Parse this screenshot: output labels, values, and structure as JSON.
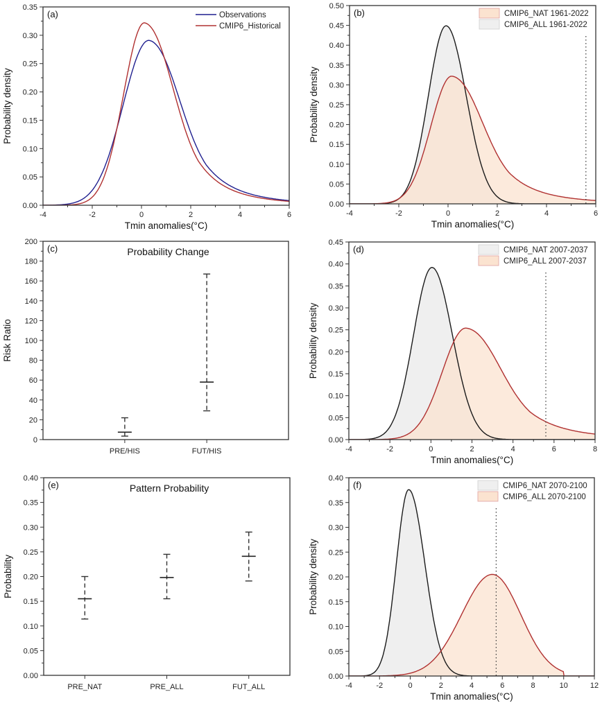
{
  "chart_data": [
    {
      "panel": "a",
      "type": "line",
      "panel_label": "(a)",
      "title": "",
      "xlabel": "Tmin anomalies(°C)",
      "ylabel": "Probability density",
      "xlim": [
        -4,
        6
      ],
      "ylim": [
        0,
        0.35
      ],
      "xticks": [
        -4,
        -2,
        0,
        2,
        4,
        6
      ],
      "yticks": [
        0.0,
        0.05,
        0.1,
        0.15,
        0.2,
        0.25,
        0.3,
        0.35
      ],
      "legend_position": "top-right",
      "series": [
        {
          "name": "Observations",
          "color": "#1f1f8f",
          "fill": null,
          "dist": {
            "mode": 0.3,
            "peak": 0.291,
            "sigma_left": 1.05,
            "sigma_right": 1.55,
            "tail": "heavy-right"
          }
        },
        {
          "name": "CMIP6_Historical",
          "color": "#b03030",
          "fill": null,
          "dist": {
            "mode": 0.12,
            "peak": 0.322,
            "sigma_left": 0.85,
            "sigma_right": 1.45,
            "tail": "heavy-right"
          }
        }
      ]
    },
    {
      "panel": "b",
      "type": "area",
      "panel_label": "(b)",
      "title": "",
      "xlabel": "Tmin anomalies(°C)",
      "ylabel": "Probability density",
      "xlim": [
        -4,
        6
      ],
      "ylim": [
        0,
        0.5
      ],
      "xticks": [
        -4,
        -2,
        0,
        2,
        4,
        6
      ],
      "yticks": [
        0.0,
        0.05,
        0.1,
        0.15,
        0.2,
        0.25,
        0.3,
        0.35,
        0.4,
        0.45,
        0.5
      ],
      "legend_position": "top-right",
      "threshold_line": 5.6,
      "series": [
        {
          "name": "CMIP6_NAT 1961-2022",
          "color": "#b03030",
          "fill": "#fbe3d0",
          "dist": {
            "mode": 0.15,
            "peak": 0.322,
            "sigma_left": 0.85,
            "sigma_right": 1.55,
            "tail": "heavy-right"
          }
        },
        {
          "name": "CMIP6_ALL  1961-2022",
          "color": "#1a1a1a",
          "fill": "#efefef",
          "dist": {
            "mode": -0.08,
            "peak": 0.449,
            "sigma_left": 0.72,
            "sigma_right": 0.82,
            "tail": "normal"
          }
        }
      ]
    },
    {
      "panel": "c",
      "type": "errorbar",
      "panel_label": "(c)",
      "title": "Probability Change",
      "xlabel": "",
      "ylabel": "Risk Ratio",
      "ylim": [
        0,
        200
      ],
      "yticks": [
        0,
        20,
        40,
        60,
        80,
        100,
        120,
        140,
        160,
        180,
        200
      ],
      "categories": [
        "PRE/HIS",
        "FUT/HIS"
      ],
      "center": [
        7.5,
        58
      ],
      "lower": [
        3.5,
        29
      ],
      "upper": [
        22,
        167
      ]
    },
    {
      "panel": "d",
      "type": "area",
      "panel_label": "(d)",
      "title": "",
      "xlabel": "Tmin anomalies(°C)",
      "ylabel": "Probability density",
      "xlim": [
        -4,
        8
      ],
      "ylim": [
        0,
        0.45
      ],
      "xticks": [
        -4,
        -2,
        0,
        2,
        4,
        6,
        8
      ],
      "yticks": [
        0.0,
        0.05,
        0.1,
        0.15,
        0.2,
        0.25,
        0.3,
        0.35,
        0.4,
        0.45
      ],
      "legend_position": "top-right",
      "threshold_line": 5.6,
      "series": [
        {
          "name": "CMIP6_NAT 2007-2037",
          "color": "#1a1a1a",
          "fill": "#efefef",
          "dist": {
            "mode": 0.05,
            "peak": 0.392,
            "sigma_left": 0.9,
            "sigma_right": 1.0,
            "tail": "normal"
          }
        },
        {
          "name": "CMIP6_ALL  2007-2037",
          "color": "#b03030",
          "fill": "#fbe3d0",
          "dist": {
            "mode": 1.7,
            "peak": 0.254,
            "sigma_left": 1.15,
            "sigma_right": 2.1,
            "tail": "heavy-right"
          }
        }
      ]
    },
    {
      "panel": "e",
      "type": "errorbar",
      "panel_label": "(e)",
      "title": "Pattern Probability",
      "xlabel": "",
      "ylabel": "Probability",
      "ylim": [
        0,
        0.4
      ],
      "yticks": [
        0.0,
        0.05,
        0.1,
        0.15,
        0.2,
        0.25,
        0.3,
        0.35,
        0.4
      ],
      "categories": [
        "PRE_NAT",
        "PRE_ALL",
        "FUT_ALL"
      ],
      "center": [
        0.155,
        0.198,
        0.241
      ],
      "lower": [
        0.114,
        0.155,
        0.191
      ],
      "upper": [
        0.2,
        0.245,
        0.29
      ]
    },
    {
      "panel": "f",
      "type": "area",
      "panel_label": "(f)",
      "title": "",
      "xlabel": "Tmin anomalies(°C)",
      "ylabel": "Probability density",
      "xlim": [
        -4,
        12
      ],
      "ylim": [
        0,
        0.4
      ],
      "xticks": [
        -4,
        -2,
        0,
        2,
        4,
        6,
        8,
        10,
        12
      ],
      "yticks": [
        0.0,
        0.05,
        0.1,
        0.15,
        0.2,
        0.25,
        0.3,
        0.35,
        0.4
      ],
      "legend_position": "top-right",
      "threshold_line": 5.6,
      "series": [
        {
          "name": "CMIP6_NAT 2070-2100",
          "color": "#1a1a1a",
          "fill": "#efefef",
          "dist": {
            "mode": -0.1,
            "peak": 0.376,
            "sigma_left": 0.8,
            "sigma_right": 1.05,
            "tail": "normal"
          }
        },
        {
          "name": "CMIP6_ALL  2070-2100",
          "color": "#b03030",
          "fill": "#fbe3d0",
          "dist": {
            "mode": 5.35,
            "peak": 0.205,
            "sigma_left": 2.0,
            "sigma_right": 1.85,
            "tail": "normal",
            "xmax": 10
          }
        }
      ]
    }
  ]
}
